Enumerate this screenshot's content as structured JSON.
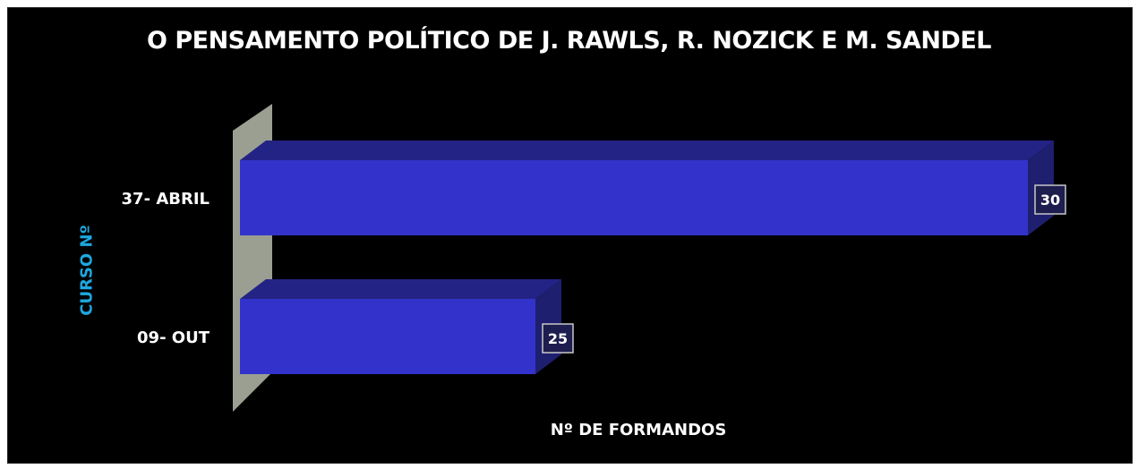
{
  "chart_data": {
    "type": "bar",
    "orientation": "horizontal",
    "title": "O PENSAMENTO POLÍTICO DE J. RAWLS, R. NOZICK E M. SANDEL",
    "xlabel": "Nº DE FORMANDOS",
    "ylabel": "CURSO Nº",
    "categories": [
      "37- ABRIL",
      "09- OUT"
    ],
    "values": [
      30,
      25
    ],
    "data_labels": [
      "30",
      "25"
    ],
    "xlim": [
      22,
      30.5
    ],
    "grid": false,
    "legend": "none",
    "style": "3d",
    "colors": {
      "background": "#000000",
      "bar_front": "#3333cc",
      "bar_top": "#232385",
      "bar_side": "#1f1f70",
      "wall": "#9a9f92",
      "title": "#ffffff",
      "ylabel": "#1ea7e0"
    }
  }
}
